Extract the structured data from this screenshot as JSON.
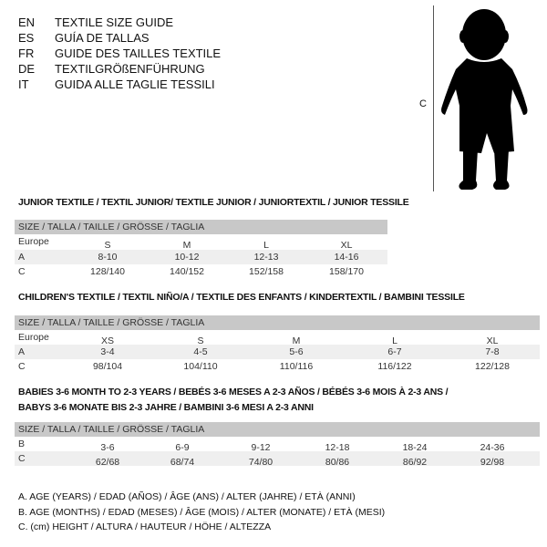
{
  "languages": [
    {
      "code": "EN",
      "text": "TEXTILE SIZE GUIDE"
    },
    {
      "code": "ES",
      "text": "GUÍA DE TALLAS"
    },
    {
      "code": "FR",
      "text": "GUIDE DES TAILLES TEXTILE"
    },
    {
      "code": "DE",
      "text": "TEXTILGRÖßENFÜHRUNG"
    },
    {
      "code": "IT",
      "text": "GUIDA ALLE TAGLIE TESSILI"
    }
  ],
  "figure": {
    "label": "C",
    "icon": "child-silhouette-icon"
  },
  "size_header": "SIZE / TALLA / TAILLE / GRÖSSE / TAGLIA",
  "tables": [
    {
      "title": "JUNIOR TEXTILE / TEXTIL JUNIOR/ TEXTILE JUNIOR / JUNIORTEXTIL / JUNIOR TESSILE",
      "rows": [
        {
          "label": "Europe",
          "values": [
            "S",
            "M",
            "L",
            "XL"
          ]
        },
        {
          "label": "A",
          "values": [
            "8-10",
            "10-12",
            "12-13",
            "14-16"
          ]
        },
        {
          "label": "C",
          "values": [
            "128/140",
            "140/152",
            "152/158",
            "158/170"
          ]
        }
      ]
    },
    {
      "title": "CHILDREN'S TEXTILE / TEXTIL NIÑO/A / TEXTILE DES ENFANTS / KINDERTEXTIL / BAMBINI TESSILE",
      "rows": [
        {
          "label": "Europe",
          "values": [
            "XS",
            "S",
            "M",
            "L",
            "XL"
          ]
        },
        {
          "label": "A",
          "values": [
            "3-4",
            "4-5",
            "5-6",
            "6-7",
            "7-8"
          ]
        },
        {
          "label": "C",
          "values": [
            "98/104",
            "104/110",
            "110/116",
            "116/122",
            "122/128"
          ]
        }
      ]
    },
    {
      "title": "BABIES 3-6 MONTH TO 2-3 YEARS / BEBÉS 3-6 MESES A 2-3 AÑOS / BÉBÉS 3-6 MOIS À 2-3 ANS /",
      "title2": "BABYS 3-6 MONATE BIS 2-3 JAHRE / BAMBINI 3-6 MESI A 2-3 ANNI",
      "rows": [
        {
          "label": "B",
          "values": [
            "3-6",
            "6-9",
            "9-12",
            "12-18",
            "18-24",
            "24-36"
          ]
        },
        {
          "label": "C",
          "values": [
            "62/68",
            "68/74",
            "74/80",
            "80/86",
            "86/92",
            "92/98"
          ]
        }
      ]
    }
  ],
  "legend": [
    "A. AGE (YEARS) / EDAD (AÑOS) / ÂGE (ANS) / ALTER (JAHRE) / ETÀ (ANNI)",
    "B. AGE (MONTHS) / EDAD (MESES) / ÂGE (MOIS) / ALTER (MONATE) / ETÀ (MESI)",
    "C. (cm) HEIGHT / ALTURA / HAUTEUR / HÖHE / ALTEZZA"
  ]
}
